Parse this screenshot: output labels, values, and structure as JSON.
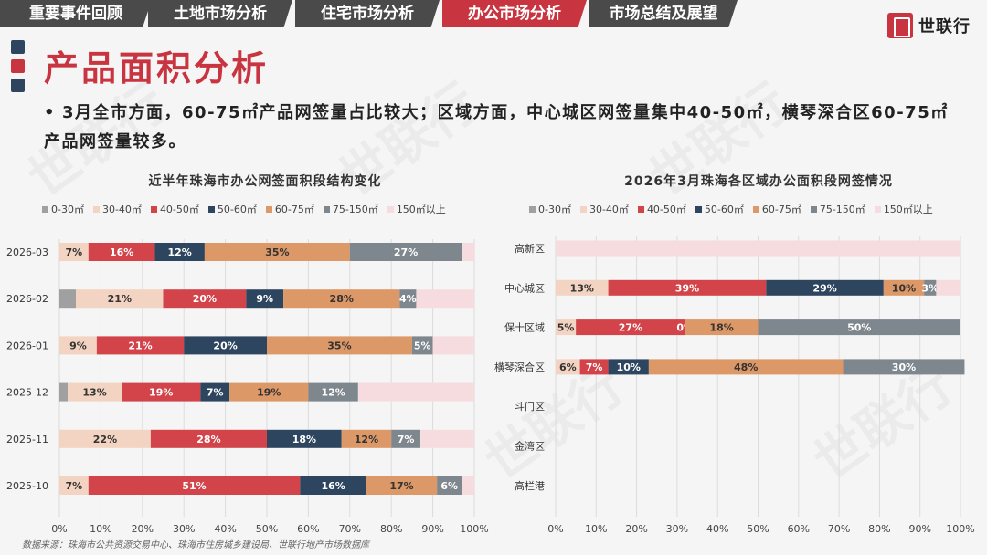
{
  "tabs": [
    "重要事件回顾",
    "土地市场分析",
    "住宅市场分析",
    "办公市场分析",
    "市场总结及展望"
  ],
  "active_tab": 3,
  "logo": "世联行",
  "watermark": "世联行",
  "title": "产品面积分析",
  "bullet": "3月全市方面，60-75㎡产品网签量占比较大；区域方面，中心城区网签量集中40-50㎡，横琴深合区60-75㎡产品网签量较多。",
  "colors": {
    "accent": "#c8343f",
    "dark": "#2e4560",
    "s0": "#a0a0a0",
    "s1": "#f3d3c1",
    "s2": "#d2434a",
    "s3": "#2e4560",
    "s4": "#dd9867",
    "s5": "#7e868e",
    "s6": "#f7dcdf"
  },
  "legend_labels": [
    "0-30㎡",
    "30-40㎡",
    "40-50㎡",
    "50-60㎡",
    "60-75㎡",
    "75-150㎡",
    "150㎡以上"
  ],
  "source": "数据来源：珠海市公共资源交易中心、珠海市住房城乡建设局、世联行地产市场数据库",
  "chart_data": [
    {
      "type": "bar",
      "orientation": "horizontal",
      "stacked": true,
      "title": "近半年珠海市办公网签面积段结构变化",
      "categories": [
        "2026-03",
        "2026-02",
        "2026-01",
        "2025-12",
        "2025-11",
        "2025-10"
      ],
      "series": [
        {
          "name": "0-30㎡",
          "values": [
            0,
            4,
            0,
            2,
            0,
            0
          ],
          "labels": [
            "",
            "",
            "",
            "",
            "",
            ""
          ]
        },
        {
          "name": "30-40㎡",
          "values": [
            7,
            21,
            9,
            13,
            22,
            7
          ],
          "labels": [
            "7%",
            "21%",
            "9%",
            "13%",
            "22%",
            "7%"
          ]
        },
        {
          "name": "40-50㎡",
          "values": [
            16,
            20,
            21,
            19,
            28,
            51
          ],
          "labels": [
            "16%",
            "20%",
            "21%",
            "19%",
            "28%",
            "51%"
          ]
        },
        {
          "name": "50-60㎡",
          "values": [
            12,
            9,
            20,
            7,
            18,
            16
          ],
          "labels": [
            "12%",
            "9%",
            "20%",
            "7%",
            "18%",
            "16%"
          ]
        },
        {
          "name": "60-75㎡",
          "values": [
            35,
            28,
            35,
            19,
            12,
            17
          ],
          "labels": [
            "35%",
            "28%",
            "35%",
            "19%",
            "12%",
            "17%"
          ]
        },
        {
          "name": "75-150㎡",
          "values": [
            27,
            4,
            5,
            12,
            7,
            6
          ],
          "labels": [
            "27%",
            "4%",
            "5%",
            "12%",
            "7%",
            "6%"
          ]
        },
        {
          "name": "150㎡以上",
          "values": [
            3,
            14,
            10,
            28,
            13,
            3
          ],
          "labels": [
            "",
            "",
            "",
            "",
            "",
            ""
          ]
        }
      ],
      "xticks": [
        "0%",
        "10%",
        "20%",
        "30%",
        "40%",
        "50%",
        "60%",
        "70%",
        "80%",
        "90%",
        "100%"
      ],
      "xlim": [
        0,
        100
      ]
    },
    {
      "type": "bar",
      "orientation": "horizontal",
      "stacked": true,
      "title": "2026年3月珠海各区域办公面积段网签情况",
      "categories": [
        "高新区",
        "中心城区",
        "保十区域",
        "横琴深合区",
        "斗门区",
        "金湾区",
        "高栏港"
      ],
      "series": [
        {
          "name": "0-30㎡",
          "values": [
            0,
            0,
            0,
            0,
            0,
            0,
            0
          ],
          "labels": [
            "",
            "",
            "",
            "",
            "",
            "",
            ""
          ]
        },
        {
          "name": "30-40㎡",
          "values": [
            0,
            13,
            5,
            6,
            0,
            0,
            0
          ],
          "labels": [
            "",
            "13%",
            "5%",
            "6%",
            "",
            "",
            ""
          ]
        },
        {
          "name": "40-50㎡",
          "values": [
            0,
            39,
            27,
            7,
            0,
            0,
            0
          ],
          "labels": [
            "",
            "39%",
            "27%",
            "7%",
            "",
            "",
            ""
          ]
        },
        {
          "name": "50-60㎡",
          "values": [
            0,
            29,
            0,
            10,
            0,
            0,
            0
          ],
          "labels": [
            "",
            "29%",
            "0%",
            "10%",
            "",
            "",
            ""
          ]
        },
        {
          "name": "60-75㎡",
          "values": [
            0,
            10,
            18,
            48,
            0,
            0,
            0
          ],
          "labels": [
            "",
            "10%",
            "18%",
            "48%",
            "",
            "",
            ""
          ]
        },
        {
          "name": "75-150㎡",
          "values": [
            0,
            3,
            50,
            30,
            0,
            0,
            0
          ],
          "labels": [
            "",
            "3%",
            "50%",
            "30%",
            "",
            "",
            ""
          ]
        },
        {
          "name": "150㎡以上",
          "values": [
            100,
            6,
            0,
            0,
            0,
            0,
            0
          ],
          "labels": [
            "",
            "",
            "",
            "",
            "",
            "",
            ""
          ]
        }
      ],
      "xticks": [
        "0%",
        "10%",
        "20%",
        "30%",
        "40%",
        "50%",
        "60%",
        "70%",
        "80%",
        "90%",
        "100%"
      ],
      "xlim": [
        0,
        100
      ]
    }
  ]
}
